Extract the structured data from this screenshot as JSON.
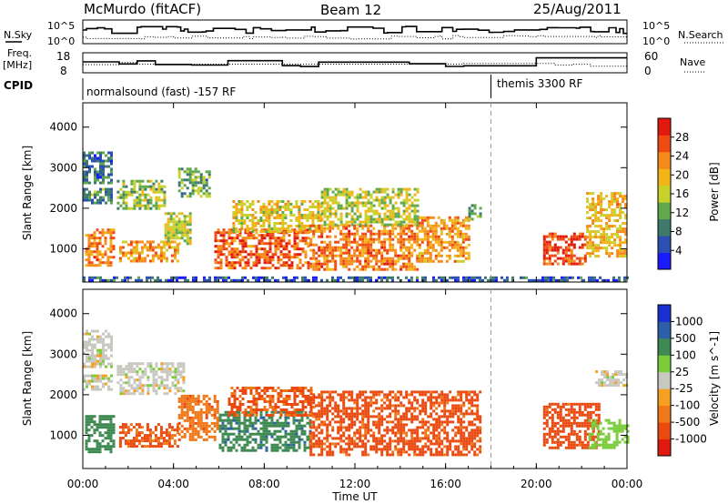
{
  "header": {
    "station": "McMurdo (fitACF)",
    "beam": "Beam 12",
    "date": "25/Aug/2011"
  },
  "summary_panels": {
    "nsky_label": "N.Sky",
    "nsearch_label": "N.Search",
    "nsky_ticks": [
      "10^5",
      "10^0"
    ],
    "nsearch_ticks": [
      "10^5",
      "10^0"
    ],
    "freq_label_1": "Freq.",
    "freq_label_2": "[MHz]",
    "freq_ticks": [
      "18",
      "8"
    ],
    "nave_label": "Nave",
    "nave_ticks": [
      "60",
      "0"
    ],
    "cpid_label": "CPID",
    "cpid_left": "normalsound (fast) -157 RF",
    "cpid_right": "themis 3300 RF",
    "cpid_switch_time": 18.0
  },
  "chart_data": [
    {
      "type": "heatmap",
      "title": "",
      "xlabel": "Time UT",
      "ylabel": "Slant Range [km]",
      "x_ticks": [
        "00:00",
        "04:00",
        "08:00",
        "12:00",
        "16:00",
        "20:00",
        "00:00"
      ],
      "y_ticks": [
        "1000",
        "2000",
        "3000",
        "4000"
      ],
      "xlim": [
        0,
        24
      ],
      "ylim": [
        180,
        4600
      ],
      "colorbar_label": "Power [dB]",
      "colorbar_ticks": [
        "4",
        "8",
        "12",
        "16",
        "20",
        "24",
        "28"
      ],
      "colorbar_range": [
        0,
        32
      ],
      "colors": [
        "#1a1aff",
        "#2b4fb3",
        "#3d7a6a",
        "#5fa84c",
        "#c8d02a",
        "#f3b416",
        "#f58a1a",
        "#ee4a12",
        "#e21a0e"
      ],
      "regions": [
        {
          "t0": 0.0,
          "t1": 1.3,
          "r0": 2600,
          "r1": 3400,
          "value": 8
        },
        {
          "t0": 0.0,
          "t1": 1.3,
          "r0": 2100,
          "r1": 2500,
          "value": 10
        },
        {
          "t0": 0.1,
          "t1": 1.4,
          "r0": 600,
          "r1": 1500,
          "value": 24
        },
        {
          "t0": 1.5,
          "t1": 3.6,
          "r0": 2000,
          "r1": 2700,
          "value": 14
        },
        {
          "t0": 1.6,
          "t1": 4.2,
          "r0": 700,
          "r1": 1200,
          "value": 22
        },
        {
          "t0": 3.6,
          "t1": 4.8,
          "r0": 1100,
          "r1": 1900,
          "value": 16
        },
        {
          "t0": 4.2,
          "t1": 5.6,
          "r0": 2300,
          "r1": 3000,
          "value": 12
        },
        {
          "t0": 5.8,
          "t1": 10.0,
          "r0": 500,
          "r1": 1500,
          "value": 26
        },
        {
          "t0": 6.6,
          "t1": 10.5,
          "r0": 1400,
          "r1": 2200,
          "value": 18
        },
        {
          "t0": 10.0,
          "t1": 14.8,
          "r0": 500,
          "r1": 1600,
          "value": 24
        },
        {
          "t0": 10.5,
          "t1": 14.8,
          "r0": 1600,
          "r1": 2500,
          "value": 16
        },
        {
          "t0": 14.8,
          "t1": 17.0,
          "r0": 700,
          "r1": 1800,
          "value": 22
        },
        {
          "t0": 17.0,
          "t1": 17.6,
          "r0": 1700,
          "r1": 2100,
          "value": 12
        },
        {
          "t0": 20.3,
          "t1": 22.2,
          "r0": 600,
          "r1": 1400,
          "value": 28
        },
        {
          "t0": 22.2,
          "t1": 24.0,
          "r0": 800,
          "r1": 2400,
          "value": 20
        },
        {
          "t0": 0.0,
          "t1": 24.0,
          "r0": 200,
          "r1": 320,
          "value": 6
        }
      ]
    },
    {
      "type": "heatmap",
      "title": "",
      "xlabel": "Time UT",
      "ylabel": "Slant Range [km]",
      "x_ticks": [
        "00:00",
        "04:00",
        "08:00",
        "12:00",
        "16:00",
        "20:00",
        "00:00"
      ],
      "y_ticks": [
        "1000",
        "2000",
        "3000",
        "4000"
      ],
      "xlim": [
        0,
        24
      ],
      "ylim": [
        180,
        4600
      ],
      "colorbar_label": "Velocity [m s^-1]",
      "colorbar_ticks": [
        "1000",
        "500",
        "100",
        "25",
        "-25",
        "-100",
        "-500",
        "-1000"
      ],
      "colors": [
        "#1a2fd0",
        "#2c5fa8",
        "#3e8a52",
        "#7acc3a",
        "#c8c8c0",
        "#f5a020",
        "#f07818",
        "#ea4a10",
        "#e01a10"
      ],
      "regions": [
        {
          "t0": 0.0,
          "t1": 1.3,
          "r0": 2700,
          "r1": 3600,
          "value": 0
        },
        {
          "t0": 0.0,
          "t1": 1.3,
          "r0": 2100,
          "r1": 2500,
          "value": 0
        },
        {
          "t0": 0.1,
          "t1": 1.4,
          "r0": 600,
          "r1": 1500,
          "value": 120
        },
        {
          "t0": 1.5,
          "t1": 4.5,
          "r0": 2000,
          "r1": 2800,
          "value": 0
        },
        {
          "t0": 1.6,
          "t1": 4.2,
          "r0": 700,
          "r1": 1300,
          "value": -250
        },
        {
          "t0": 4.2,
          "t1": 6.0,
          "r0": 900,
          "r1": 2000,
          "value": -150
        },
        {
          "t0": 6.0,
          "t1": 10.0,
          "r0": 600,
          "r1": 1600,
          "value": 150
        },
        {
          "t0": 6.4,
          "t1": 10.2,
          "r0": 1500,
          "r1": 2200,
          "value": -250
        },
        {
          "t0": 10.0,
          "t1": 17.5,
          "r0": 500,
          "r1": 2100,
          "value": -300
        },
        {
          "t0": 20.3,
          "t1": 22.8,
          "r0": 700,
          "r1": 1800,
          "value": -350
        },
        {
          "t0": 22.3,
          "t1": 24.0,
          "r0": 700,
          "r1": 1400,
          "value": 40
        },
        {
          "t0": 22.6,
          "t1": 24.0,
          "r0": 2200,
          "r1": 2600,
          "value": 0
        }
      ]
    }
  ]
}
